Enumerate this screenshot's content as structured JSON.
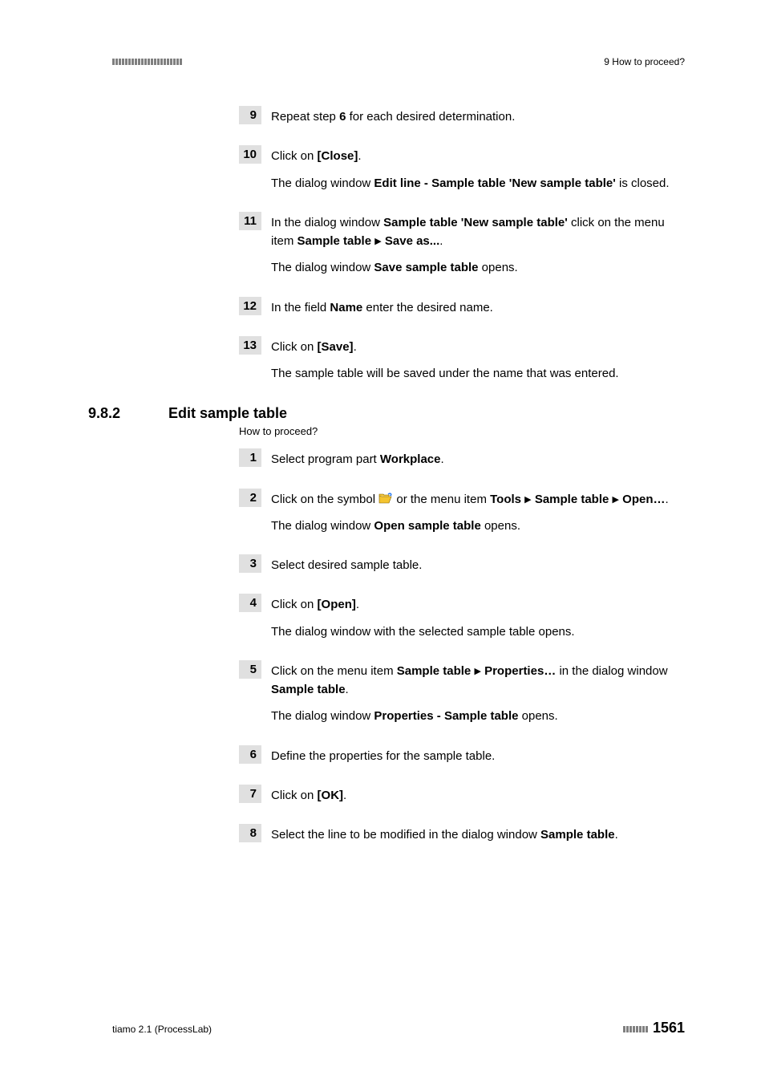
{
  "header": {
    "right": "9 How to proceed?"
  },
  "steps_a": [
    {
      "num": "9",
      "paras": [
        [
          {
            "t": "Repeat step "
          },
          {
            "t": "6",
            "b": true
          },
          {
            "t": " for each desired determination."
          }
        ]
      ]
    },
    {
      "num": "10",
      "paras": [
        [
          {
            "t": "Click on "
          },
          {
            "t": "[Close]",
            "b": true
          },
          {
            "t": "."
          }
        ],
        [
          {
            "t": "The dialog window "
          },
          {
            "t": "Edit line - Sample table 'New sample table'",
            "b": true
          },
          {
            "t": " is closed."
          }
        ]
      ]
    },
    {
      "num": "11",
      "paras": [
        [
          {
            "t": "In the dialog window "
          },
          {
            "t": "Sample table 'New sample table'",
            "b": true
          },
          {
            "t": " click on the menu item "
          },
          {
            "t": "Sample table",
            "b": true
          },
          {
            "tri": true
          },
          {
            "t": "Save as...",
            "b": true
          },
          {
            "t": "."
          }
        ],
        [
          {
            "t": "The dialog window "
          },
          {
            "t": "Save sample table",
            "b": true
          },
          {
            "t": " opens."
          }
        ]
      ]
    },
    {
      "num": "12",
      "paras": [
        [
          {
            "t": "In the field "
          },
          {
            "t": "Name",
            "b": true
          },
          {
            "t": " enter the desired name."
          }
        ]
      ]
    },
    {
      "num": "13",
      "paras": [
        [
          {
            "t": "Click on "
          },
          {
            "t": "[Save]",
            "b": true
          },
          {
            "t": "."
          }
        ],
        [
          {
            "t": "The sample table will be saved under the name that was entered."
          }
        ]
      ]
    }
  ],
  "section": {
    "num": "9.8.2",
    "title": "Edit sample table",
    "subtext": "How to proceed?"
  },
  "steps_b": [
    {
      "num": "1",
      "paras": [
        [
          {
            "t": "Select program part "
          },
          {
            "t": "Workplace",
            "b": true
          },
          {
            "t": "."
          }
        ]
      ]
    },
    {
      "num": "2",
      "paras": [
        [
          {
            "t": "Click on the symbol "
          },
          {
            "icon": "folder"
          },
          {
            "t": " or the menu item "
          },
          {
            "t": "Tools",
            "b": true
          },
          {
            "tri": true
          },
          {
            "t": "Sample table",
            "b": true
          },
          {
            "tri": true
          },
          {
            "t": "Open…",
            "b": true
          },
          {
            "t": "."
          }
        ],
        [
          {
            "t": "The dialog window "
          },
          {
            "t": "Open sample table",
            "b": true
          },
          {
            "t": " opens."
          }
        ]
      ]
    },
    {
      "num": "3",
      "paras": [
        [
          {
            "t": "Select desired sample table."
          }
        ]
      ]
    },
    {
      "num": "4",
      "paras": [
        [
          {
            "t": "Click on "
          },
          {
            "t": "[Open]",
            "b": true
          },
          {
            "t": "."
          }
        ],
        [
          {
            "t": "The dialog window with the selected sample table opens."
          }
        ]
      ]
    },
    {
      "num": "5",
      "paras": [
        [
          {
            "t": "Click on the menu item "
          },
          {
            "t": "Sample table",
            "b": true
          },
          {
            "tri": true
          },
          {
            "t": "Properties…",
            "b": true
          },
          {
            "t": " in the dialog window "
          },
          {
            "t": "Sample table",
            "b": true
          },
          {
            "t": "."
          }
        ],
        [
          {
            "t": "The dialog window "
          },
          {
            "t": "Properties - Sample table",
            "b": true
          },
          {
            "t": " opens."
          }
        ]
      ]
    },
    {
      "num": "6",
      "paras": [
        [
          {
            "t": "Define the properties for the sample table."
          }
        ]
      ]
    },
    {
      "num": "7",
      "paras": [
        [
          {
            "t": "Click on "
          },
          {
            "t": "[OK]",
            "b": true
          },
          {
            "t": "."
          }
        ]
      ]
    },
    {
      "num": "8",
      "paras": [
        [
          {
            "t": "Select the line to be modified in the dialog window "
          },
          {
            "t": "Sample table",
            "b": true
          },
          {
            "t": "."
          }
        ]
      ]
    }
  ],
  "footer": {
    "left": "tiamo 2.1 (ProcessLab)",
    "page": "1561"
  },
  "decor": {
    "header_dash_count": 22,
    "footer_dash_count": 8
  }
}
